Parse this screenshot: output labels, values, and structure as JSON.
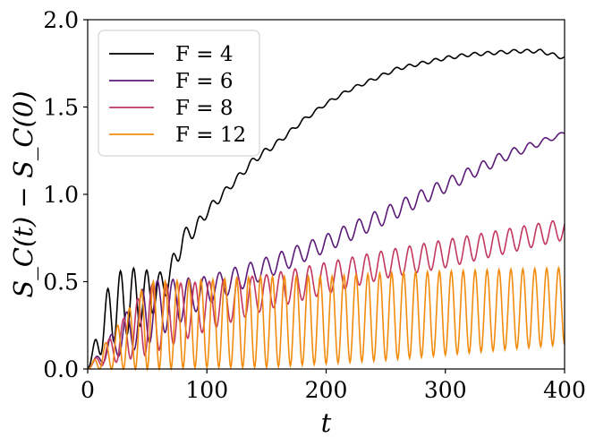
{
  "chart_data": {
    "type": "line",
    "xlabel": "t",
    "ylabel": "S_C(t) − S_C(0)",
    "xlim": [
      0,
      400
    ],
    "ylim": [
      0,
      2.0
    ],
    "xticks": [
      0,
      100,
      200,
      300,
      400
    ],
    "xtick_labels": [
      "0",
      "100",
      "200",
      "300",
      "400"
    ],
    "yticks": [
      0.0,
      0.5,
      1.0,
      1.5,
      2.0
    ],
    "ytick_labels": [
      "0.0",
      "0.5",
      "1.0",
      "1.5",
      "2.0"
    ],
    "grid": false,
    "legend_position": "top-left",
    "series": [
      {
        "name": "F = 4",
        "color": "#000000",
        "x": [
          0,
          20,
          40,
          60,
          70,
          80,
          90,
          100,
          120,
          140,
          160,
          180,
          200,
          220,
          240,
          260,
          280,
          300,
          320,
          340,
          360,
          380,
          400
        ],
        "y": [
          0.0,
          0.35,
          0.4,
          0.45,
          0.55,
          0.75,
          0.8,
          0.9,
          1.05,
          1.2,
          1.3,
          1.42,
          1.52,
          1.6,
          1.66,
          1.72,
          1.75,
          1.78,
          1.8,
          1.81,
          1.82,
          1.82,
          1.78
        ],
        "osc_amp": [
          0,
          0.2,
          0.18,
          0.1,
          0.08,
          0.05,
          0.04,
          0.03,
          0.02,
          0.02,
          0.015,
          0.012,
          0.01,
          0.01,
          0.01,
          0.01,
          0.01,
          0.01,
          0.01,
          0.01,
          0.01,
          0.01,
          0.01
        ],
        "osc_period": 11
      },
      {
        "name": "F = 6",
        "color": "#5c1a78",
        "x": [
          0,
          50,
          100,
          150,
          200,
          250,
          300,
          350,
          400
        ],
        "y": [
          0.0,
          0.32,
          0.45,
          0.58,
          0.72,
          0.88,
          1.05,
          1.22,
          1.35
        ],
        "osc_amp": [
          0,
          0.18,
          0.08,
          0.06,
          0.05,
          0.05,
          0.04,
          0.03,
          0.01
        ],
        "osc_period": 13
      },
      {
        "name": "F = 8",
        "color": "#c2385f",
        "x": [
          0,
          50,
          100,
          150,
          200,
          250,
          300,
          350,
          400
        ],
        "y": [
          0.0,
          0.28,
          0.36,
          0.44,
          0.52,
          0.6,
          0.66,
          0.73,
          0.8
        ],
        "osc_amp": [
          0,
          0.2,
          0.14,
          0.1,
          0.09,
          0.08,
          0.08,
          0.07,
          0.06
        ],
        "osc_period": 12
      },
      {
        "name": "F = 12",
        "color": "#f28c0f",
        "x": [
          0,
          50,
          100,
          150,
          200,
          250,
          300,
          350,
          400
        ],
        "y": [
          0.0,
          0.25,
          0.26,
          0.27,
          0.28,
          0.3,
          0.32,
          0.34,
          0.36
        ],
        "osc_amp": [
          0,
          0.25,
          0.25,
          0.26,
          0.25,
          0.25,
          0.24,
          0.23,
          0.22
        ],
        "osc_period": 10
      }
    ]
  }
}
